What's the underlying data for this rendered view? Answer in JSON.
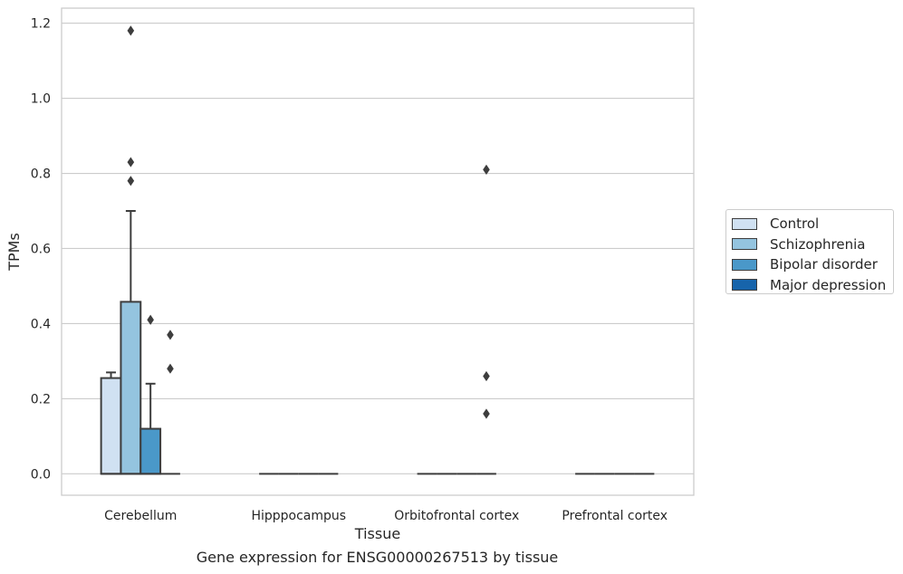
{
  "caption": "Gene expression for ENSG00000267513 by tissue",
  "chart_data": {
    "type": "box",
    "xlabel": "Tissue",
    "ylabel": "TPMs",
    "ylim": [
      -0.057,
      1.24
    ],
    "yticks": [
      "0.0",
      "0.2",
      "0.4",
      "0.6",
      "0.8",
      "1.0",
      "1.2"
    ],
    "ytick_values": [
      0.0,
      0.2,
      0.4,
      0.6,
      0.8,
      1.0,
      1.2
    ],
    "grid": "horizontal",
    "legend_position": "right",
    "categories": [
      "Cerebellum",
      "Hipppocampus",
      "Orbitofrontal cortex",
      "Prefrontal cortex"
    ],
    "series": [
      {
        "name": "Control",
        "color": "#d0e1f2",
        "boxes": [
          {
            "q1": 0.0,
            "median": 0.0,
            "q3": 0.255,
            "whisker_low": 0.0,
            "whisker_high": 0.27,
            "outliers": []
          },
          {
            "q1": 0.0,
            "median": 0.0,
            "q3": 0.0,
            "whisker_low": 0.0,
            "whisker_high": 0.0,
            "outliers": []
          },
          {
            "q1": 0.0,
            "median": 0.0,
            "q3": 0.0,
            "whisker_low": 0.0,
            "whisker_high": 0.0,
            "outliers": []
          },
          {
            "q1": 0.0,
            "median": 0.0,
            "q3": 0.0,
            "whisker_low": 0.0,
            "whisker_high": 0.0,
            "outliers": []
          }
        ]
      },
      {
        "name": "Schizophrenia",
        "color": "#94c4df",
        "boxes": [
          {
            "q1": 0.0,
            "median": 0.0,
            "q3": 0.458,
            "whisker_low": 0.0,
            "whisker_high": 0.7,
            "outliers": [
              0.78,
              0.83,
              1.18
            ]
          },
          {
            "q1": 0.0,
            "median": 0.0,
            "q3": 0.0,
            "whisker_low": 0.0,
            "whisker_high": 0.0,
            "outliers": []
          },
          {
            "q1": 0.0,
            "median": 0.0,
            "q3": 0.0,
            "whisker_low": 0.0,
            "whisker_high": 0.0,
            "outliers": []
          },
          {
            "q1": 0.0,
            "median": 0.0,
            "q3": 0.0,
            "whisker_low": 0.0,
            "whisker_high": 0.0,
            "outliers": []
          }
        ]
      },
      {
        "name": "Bipolar disorder",
        "color": "#4a98c9",
        "boxes": [
          {
            "q1": 0.0,
            "median": 0.0,
            "q3": 0.12,
            "whisker_low": 0.0,
            "whisker_high": 0.24,
            "outliers": [
              0.41
            ]
          },
          {
            "q1": 0.0,
            "median": 0.0,
            "q3": 0.0,
            "whisker_low": 0.0,
            "whisker_high": 0.0,
            "outliers": []
          },
          {
            "q1": 0.0,
            "median": 0.0,
            "q3": 0.0,
            "whisker_low": 0.0,
            "whisker_high": 0.0,
            "outliers": []
          },
          {
            "q1": 0.0,
            "median": 0.0,
            "q3": 0.0,
            "whisker_low": 0.0,
            "whisker_high": 0.0,
            "outliers": []
          }
        ]
      },
      {
        "name": "Major depression",
        "color": "#1764ab",
        "boxes": [
          {
            "q1": 0.0,
            "median": 0.0,
            "q3": 0.0,
            "whisker_low": 0.0,
            "whisker_high": 0.0,
            "outliers": [
              0.28,
              0.37
            ]
          },
          {
            "q1": 0.0,
            "median": 0.0,
            "q3": 0.0,
            "whisker_low": 0.0,
            "whisker_high": 0.0,
            "outliers": []
          },
          {
            "q1": 0.0,
            "median": 0.0,
            "q3": 0.0,
            "whisker_low": 0.0,
            "whisker_high": 0.0,
            "outliers": [
              0.16,
              0.26,
              0.81
            ]
          },
          {
            "q1": 0.0,
            "median": 0.0,
            "q3": 0.0,
            "whisker_low": 0.0,
            "whisker_high": 0.0,
            "outliers": []
          }
        ]
      }
    ]
  }
}
